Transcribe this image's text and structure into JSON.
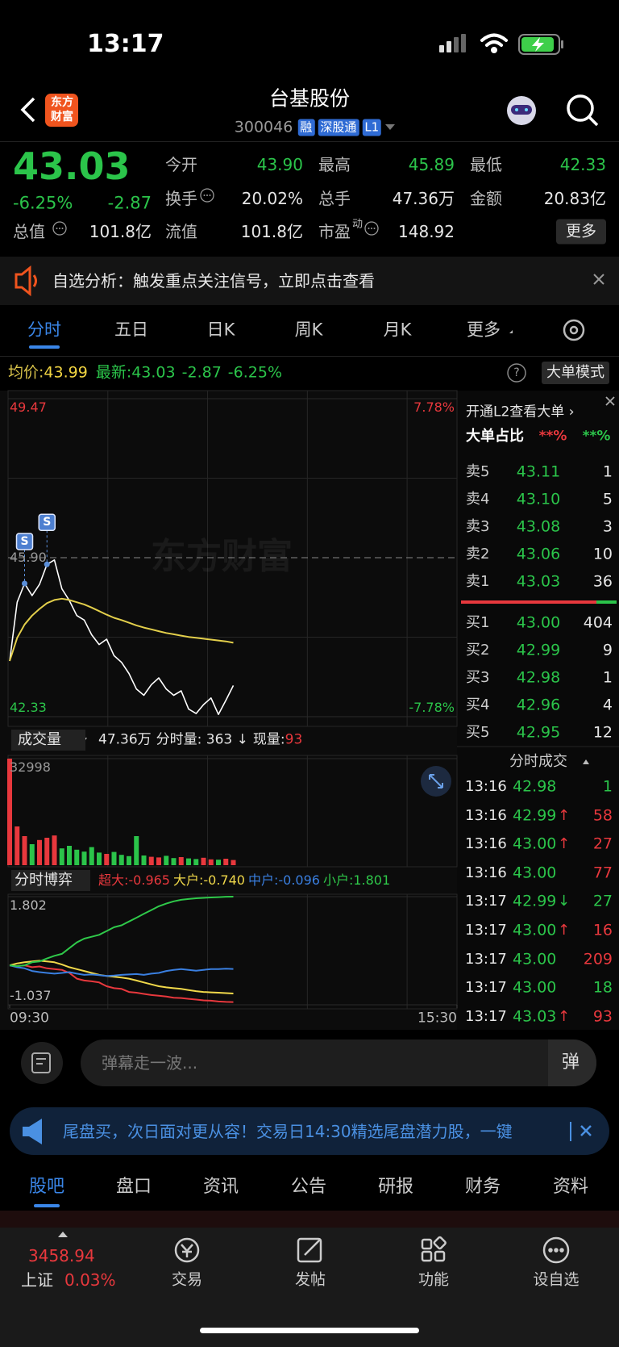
{
  "status_bar": {
    "time": "13:17"
  },
  "header": {
    "logo": [
      "东方",
      "财富"
    ],
    "title": "台基股份",
    "code": "300046",
    "badges": [
      "融",
      "深股通",
      "L1"
    ]
  },
  "quote": {
    "price": "43.03",
    "change_pct": "-6.25%",
    "change": "-2.87",
    "total_value_label": "总值",
    "total_value": "101.8亿",
    "fields": [
      {
        "label": "今开",
        "value": "43.90",
        "color": "#2bc44a"
      },
      {
        "label": "最高",
        "value": "45.89",
        "color": "#2bc44a"
      },
      {
        "label": "最低",
        "value": "42.33",
        "color": "#2bc44a"
      },
      {
        "label": "换手",
        "value": "20.02%",
        "info": true
      },
      {
        "label": "总手",
        "value": "47.36万"
      },
      {
        "label": "金额",
        "value": "20.83亿"
      },
      {
        "label": "流值",
        "value": "101.8亿"
      },
      {
        "label": "市盈",
        "sup": "动",
        "value": "148.92",
        "info": true
      }
    ],
    "more": "更多"
  },
  "alert": {
    "text": "自选分析：触发重点关注信号，立即点击查看"
  },
  "tabs": {
    "items": [
      "分时",
      "五日",
      "日K",
      "周K",
      "月K",
      "更多"
    ],
    "active": 0
  },
  "info_bar": {
    "avg_label": "均价:",
    "avg": "43.99",
    "last_label": "最新:",
    "last": "43.03",
    "change": "-2.87",
    "change_pct": "-6.25%",
    "help": "?",
    "mode": "大单模式"
  },
  "watermark": "东方财富",
  "order_book": {
    "l2": "开通L2查看大单 ›",
    "ratio_label": "大单占比",
    "ratio_buy": "**%",
    "ratio_sell": "**%",
    "asks": [
      {
        "label": "卖5",
        "price": "43.11",
        "volume": "1"
      },
      {
        "label": "卖4",
        "price": "43.10",
        "volume": "5"
      },
      {
        "label": "卖3",
        "price": "43.08",
        "volume": "3"
      },
      {
        "label": "卖2",
        "price": "43.06",
        "volume": "10"
      },
      {
        "label": "卖1",
        "price": "43.03",
        "volume": "36"
      }
    ],
    "bids": [
      {
        "label": "买1",
        "price": "43.00",
        "volume": "404"
      },
      {
        "label": "买2",
        "price": "42.99",
        "volume": "9"
      },
      {
        "label": "买3",
        "price": "42.98",
        "volume": "1"
      },
      {
        "label": "买4",
        "price": "42.96",
        "volume": "4"
      },
      {
        "label": "买5",
        "price": "42.95",
        "volume": "12"
      }
    ]
  },
  "trades": {
    "title": "分时成交",
    "rows": [
      {
        "time": "13:16",
        "price": "42.98",
        "volume": "1",
        "color": "#2bc44a"
      },
      {
        "time": "13:16",
        "price": "42.99",
        "arrow": "↑",
        "volume": "58",
        "color": "#e8383d"
      },
      {
        "time": "13:16",
        "price": "43.00",
        "arrow": "↑",
        "volume": "27",
        "color": "#e8383d"
      },
      {
        "time": "13:16",
        "price": "43.00",
        "volume": "77",
        "color": "#e8383d"
      },
      {
        "time": "13:17",
        "price": "42.99",
        "arrow": "↓",
        "volume": "27",
        "color": "#2bc44a"
      },
      {
        "time": "13:17",
        "price": "43.00",
        "arrow": "↑",
        "volume": "16",
        "color": "#e8383d"
      },
      {
        "time": "13:17",
        "price": "43.00",
        "volume": "209",
        "color": "#e8383d"
      },
      {
        "time": "13:17",
        "price": "43.00",
        "volume": "18",
        "color": "#2bc44a"
      },
      {
        "time": "13:17",
        "price": "43.03",
        "arrow": "↑",
        "volume": "93",
        "color": "#e8383d"
      }
    ]
  },
  "volume_header": {
    "selector": "成交量",
    "total": "47.36万",
    "period": "分时量: 363 ↓",
    "current_label": "现量:",
    "current": "93"
  },
  "flow_header": {
    "selector": "分时博弈"
  },
  "comment": {
    "placeholder": "弹幕走一波...",
    "button": "弹"
  },
  "banner": {
    "text": "尾盘买，次日面对更从容！交易日14:30精选尾盘潜力股，一键"
  },
  "bottom_tabs": {
    "items": [
      "股吧",
      "盘口",
      "资讯",
      "公告",
      "研报",
      "财务",
      "资料"
    ],
    "active": 0
  },
  "nav": {
    "index_value": "3458.94",
    "index_name": "上证",
    "index_change": "0.03%",
    "items": [
      "交易",
      "发帖",
      "功能",
      "设自选"
    ]
  },
  "chart_data": [
    {
      "type": "line",
      "xlim": [
        0,
        240
      ],
      "ylim": [
        42.33,
        49.47
      ],
      "yticks": [
        42.33,
        49.47
      ],
      "reference": {
        "value": 45.9,
        "label": "45.90"
      },
      "pct_labels": [
        {
          "value": 49.47,
          "label": "7.78%"
        },
        {
          "value": 42.33,
          "label": "-7.78%"
        }
      ],
      "x": [
        0,
        4,
        8,
        12,
        16,
        20,
        24,
        28,
        32,
        36,
        40,
        44,
        48,
        52,
        56,
        60,
        64,
        68,
        72,
        76,
        80,
        84,
        88,
        92,
        96,
        100,
        104,
        108,
        112,
        116,
        120
      ],
      "series": [
        {
          "color": "#ffffff",
          "values": [
            43.58,
            44.9,
            45.32,
            45.05,
            45.3,
            45.75,
            45.85,
            45.2,
            44.94,
            44.6,
            44.5,
            44.17,
            43.95,
            44.07,
            43.7,
            43.55,
            43.3,
            42.95,
            42.81,
            43.05,
            43.2,
            42.95,
            42.81,
            42.91,
            42.5,
            42.4,
            42.6,
            42.75,
            42.38,
            42.7,
            43.03
          ]
        },
        {
          "color": "#e3cf4b",
          "values": [
            43.58,
            44.1,
            44.4,
            44.6,
            44.75,
            44.88,
            44.95,
            44.98,
            44.95,
            44.9,
            44.85,
            44.78,
            44.7,
            44.62,
            44.55,
            44.5,
            44.44,
            44.38,
            44.33,
            44.29,
            44.25,
            44.21,
            44.18,
            44.15,
            44.12,
            44.1,
            44.08,
            44.06,
            44.04,
            44.02,
            43.99
          ]
        }
      ],
      "signals": [
        {
          "label": "S",
          "x": 8
        },
        {
          "label": "S",
          "x": 20
        }
      ]
    },
    {
      "type": "bar",
      "xlim": [
        0,
        240
      ],
      "ylim": [
        0,
        32998
      ],
      "yticks": [
        32998
      ],
      "up_color": "#e8383d",
      "down_color": "#2bc44a",
      "x": [
        0,
        4,
        8,
        12,
        16,
        20,
        24,
        28,
        32,
        36,
        40,
        44,
        48,
        52,
        56,
        60,
        64,
        68,
        72,
        76,
        80,
        84,
        88,
        92,
        96,
        100,
        104,
        108,
        112,
        116,
        120
      ],
      "values": [
        32998,
        12000,
        9000,
        6500,
        7800,
        8500,
        9200,
        5200,
        6000,
        4800,
        4200,
        5600,
        3900,
        3500,
        4100,
        3200,
        2800,
        9000,
        3000,
        2600,
        2400,
        2900,
        2200,
        2500,
        2100,
        1900,
        2300,
        1800,
        1700,
        2000,
        1600
      ]
    },
    {
      "type": "line",
      "xlim": [
        0,
        240
      ],
      "ylim": [
        -1.037,
        1.802
      ],
      "yticks": [
        -1.037,
        1.802
      ],
      "xticks": [
        {
          "value": 0,
          "label": "09:30"
        },
        {
          "value": 240,
          "label": "15:30"
        }
      ],
      "x": [
        0,
        4,
        8,
        12,
        16,
        20,
        24,
        28,
        32,
        36,
        40,
        44,
        48,
        52,
        56,
        60,
        64,
        68,
        72,
        76,
        80,
        84,
        88,
        92,
        96,
        100,
        104,
        108,
        112,
        116,
        120
      ],
      "series": [
        {
          "name": "超大:",
          "last_label": "-0.965",
          "color": "#e8383d",
          "values": [
            0,
            -0.02,
            0,
            -0.05,
            -0.03,
            -0.08,
            -0.1,
            -0.12,
            -0.2,
            -0.35,
            -0.4,
            -0.42,
            -0.45,
            -0.55,
            -0.6,
            -0.62,
            -0.7,
            -0.72,
            -0.75,
            -0.78,
            -0.8,
            -0.82,
            -0.85,
            -0.86,
            -0.88,
            -0.9,
            -0.92,
            -0.93,
            -0.95,
            -0.96,
            -0.965
          ]
        },
        {
          "name": "大户:",
          "last_label": "-0.740",
          "color": "#f0d84a",
          "values": [
            0,
            0.05,
            0.08,
            0.1,
            0.12,
            0.1,
            0.08,
            0.02,
            -0.05,
            -0.1,
            -0.15,
            -0.2,
            -0.25,
            -0.28,
            -0.3,
            -0.32,
            -0.35,
            -0.4,
            -0.45,
            -0.5,
            -0.55,
            -0.58,
            -0.6,
            -0.62,
            -0.65,
            -0.68,
            -0.7,
            -0.71,
            -0.72,
            -0.73,
            -0.74
          ]
        },
        {
          "name": "中户:",
          "last_label": "-0.096",
          "color": "#3a7fe0",
          "values": [
            0,
            -0.05,
            -0.08,
            -0.15,
            -0.18,
            -0.2,
            -0.22,
            -0.2,
            -0.18,
            -0.22,
            -0.25,
            -0.24,
            -0.26,
            -0.28,
            -0.27,
            -0.25,
            -0.24,
            -0.23,
            -0.25,
            -0.22,
            -0.2,
            -0.15,
            -0.12,
            -0.1,
            -0.12,
            -0.14,
            -0.12,
            -0.1,
            -0.1,
            -0.09,
            -0.096
          ]
        },
        {
          "name": "小户:",
          "last_label": "1.801",
          "color": "#2fc94a",
          "values": [
            0,
            -0.02,
            0,
            0.08,
            0.1,
            0.18,
            0.25,
            0.3,
            0.45,
            0.6,
            0.7,
            0.75,
            0.8,
            0.9,
            1,
            1.05,
            1.15,
            1.25,
            1.35,
            1.45,
            1.55,
            1.62,
            1.68,
            1.72,
            1.74,
            1.76,
            1.77,
            1.78,
            1.79,
            1.8,
            1.801
          ]
        }
      ]
    }
  ]
}
